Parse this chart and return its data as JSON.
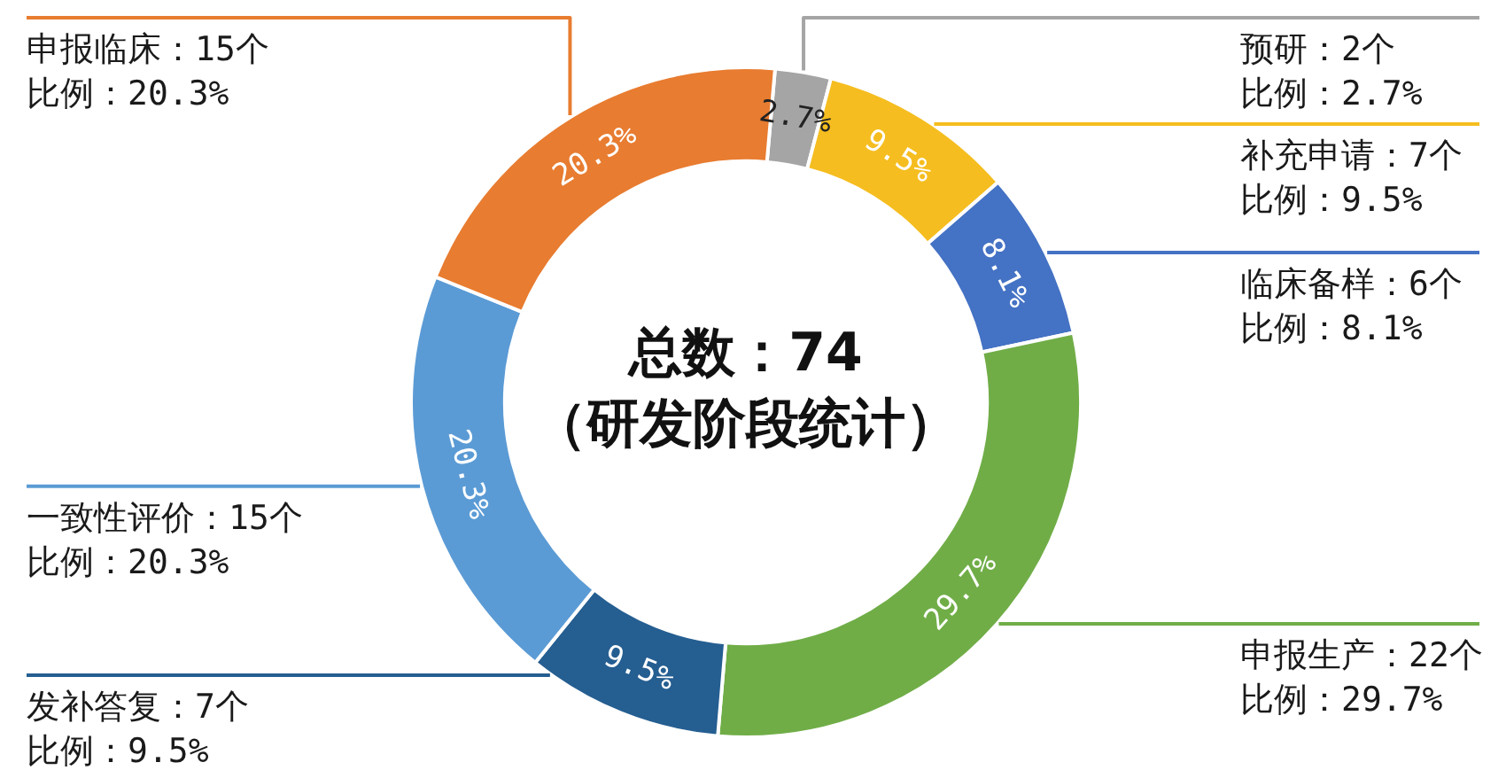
{
  "chart_data": {
    "type": "donut",
    "title": "总数：74",
    "subtitle": "（研发阶段统计）",
    "categories": [
      "预研：2个",
      "补充申请：7个",
      "临床备样：6个",
      "申报生产：22个",
      "发补答复：7个",
      "一致性评价：15个",
      "申报临床：15个"
    ],
    "values": [
      2.7,
      9.5,
      8.1,
      29.7,
      9.5,
      20.3,
      20.3
    ],
    "colors": [
      "#a5a5a5",
      "#f5bd1f",
      "#4472c4",
      "#70ad47",
      "#255e91",
      "#5b9bd5",
      "#e87c30"
    ],
    "value_labels": [
      "2.7%",
      "9.5%",
      "8.1%",
      "29.7%",
      "9.5%",
      "20.3%",
      "20.3%"
    ],
    "annotations": [
      "比例：2.7%",
      "比例：9.5%",
      "比例：8.1%",
      "比例：29.7%",
      "比例：9.5%",
      "比例：20.3%",
      "比例：20.3%"
    ]
  }
}
